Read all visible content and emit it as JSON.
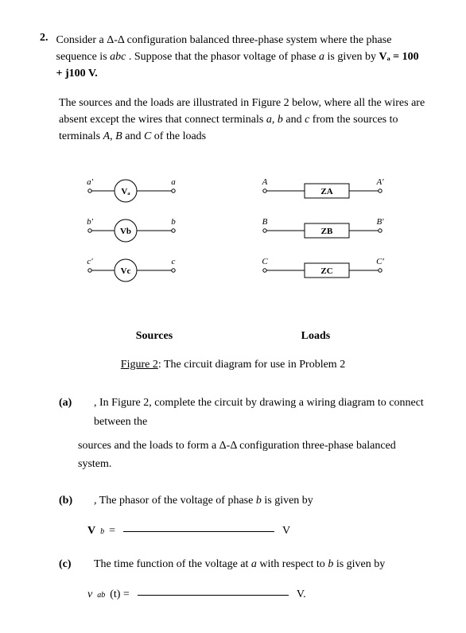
{
  "problem": {
    "number": "2.",
    "intro_line1": "Consider a Δ-Δ configuration balanced three-phase system where the phase sequence is ",
    "intro_seq": "abc",
    "intro_line1b": " . Suppose that the phasor voltage of phase ",
    "intro_phase": "a",
    "intro_line1c": " is given by ",
    "intro_eq": "Vₐ = 100 + j100   V.",
    "para2": "The sources and the loads are illustrated in Figure 2 below, where all the wires are absent except the wires that connect terminals ",
    "para2_a": "a",
    "para2_mid1": ", ",
    "para2_b": "b",
    "para2_mid2": " and ",
    "para2_c": "c",
    "para2_mid3": " from the sources to terminals ",
    "para2_A": "A",
    "para2_mid4": ", ",
    "para2_B": "B",
    "para2_mid5": " and ",
    "para2_C": "C",
    "para2_end": " of the loads"
  },
  "figure": {
    "rows": [
      {
        "srcL": "a'",
        "srcLabel": "Vₐ",
        "srcR": "a",
        "ldL": "A",
        "ldLabel": "Z_A",
        "ldR": "A'"
      },
      {
        "srcL": "b'",
        "srcLabel": "V_b",
        "srcR": "b",
        "ldL": "B",
        "ldLabel": "Z_B",
        "ldR": "B'"
      },
      {
        "srcL": "c'",
        "srcLabel": "V_c",
        "srcR": "c",
        "ldL": "C",
        "ldLabel": "Z_C",
        "ldR": "C'"
      }
    ],
    "sources_label": "Sources",
    "loads_label": "Loads",
    "caption_prefix": "Figure 2",
    "caption_rest": ": The circuit diagram for use in Problem 2",
    "style": {
      "stroke": "#000000",
      "stroke_width": 1,
      "circle_r": 14,
      "rect_w": 56,
      "rect_h": 18,
      "node_r": 2.2,
      "font_size": 11,
      "font_family": "Times New Roman"
    }
  },
  "parts": {
    "a": {
      "label": "(a)",
      "text1": ", In Figure 2, complete the circuit by drawing a wiring diagram to connect between the",
      "text2": "sources and the loads to form a Δ-Δ configuration three-phase balanced system."
    },
    "b": {
      "label": "(b)",
      "text": ", The phasor of the voltage of phase ",
      "phase": "b",
      "text2": " is given by",
      "eq_lhs": "V",
      "eq_sub": "b",
      "eq_eq": " = ",
      "unit": " V"
    },
    "c": {
      "label": "(c)",
      "text": "The time function of the voltage at ",
      "at": "a",
      "text2": " with respect to ",
      "wrt": "b",
      "text3": " is given by",
      "eq_lhs": "v",
      "eq_sub": "ab",
      "eq_arg": "(t) = ",
      "unit": " V."
    }
  }
}
